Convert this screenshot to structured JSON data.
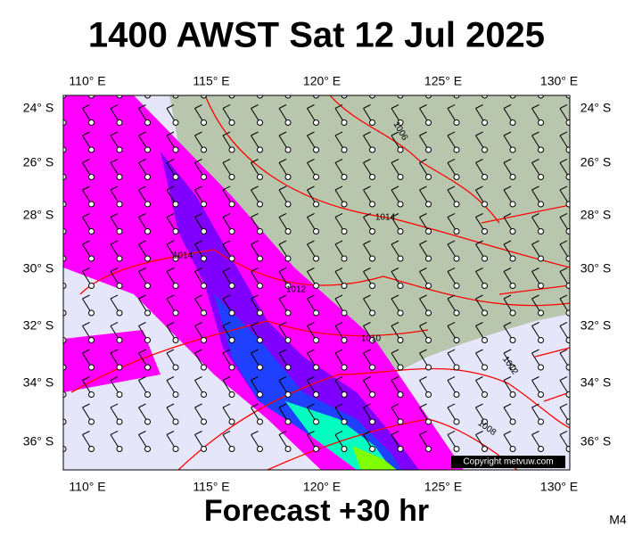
{
  "header": {
    "title": "1400 AWST Sat 12 Jul 2025"
  },
  "footer": {
    "forecast": "Forecast +30 hr",
    "model": "M4"
  },
  "map": {
    "lon_labels": [
      "110° E",
      "115° E",
      "120° E",
      "125° E",
      "130° E"
    ],
    "lat_labels": [
      "24° S",
      "26° S",
      "28° S",
      "30° S",
      "32° S",
      "34° S",
      "36° S"
    ],
    "isobar_labels": [
      "1006",
      "1014",
      "1014",
      "1012",
      "1010",
      "1012",
      "1008"
    ],
    "copyright": "Copyright metvuw.com"
  }
}
